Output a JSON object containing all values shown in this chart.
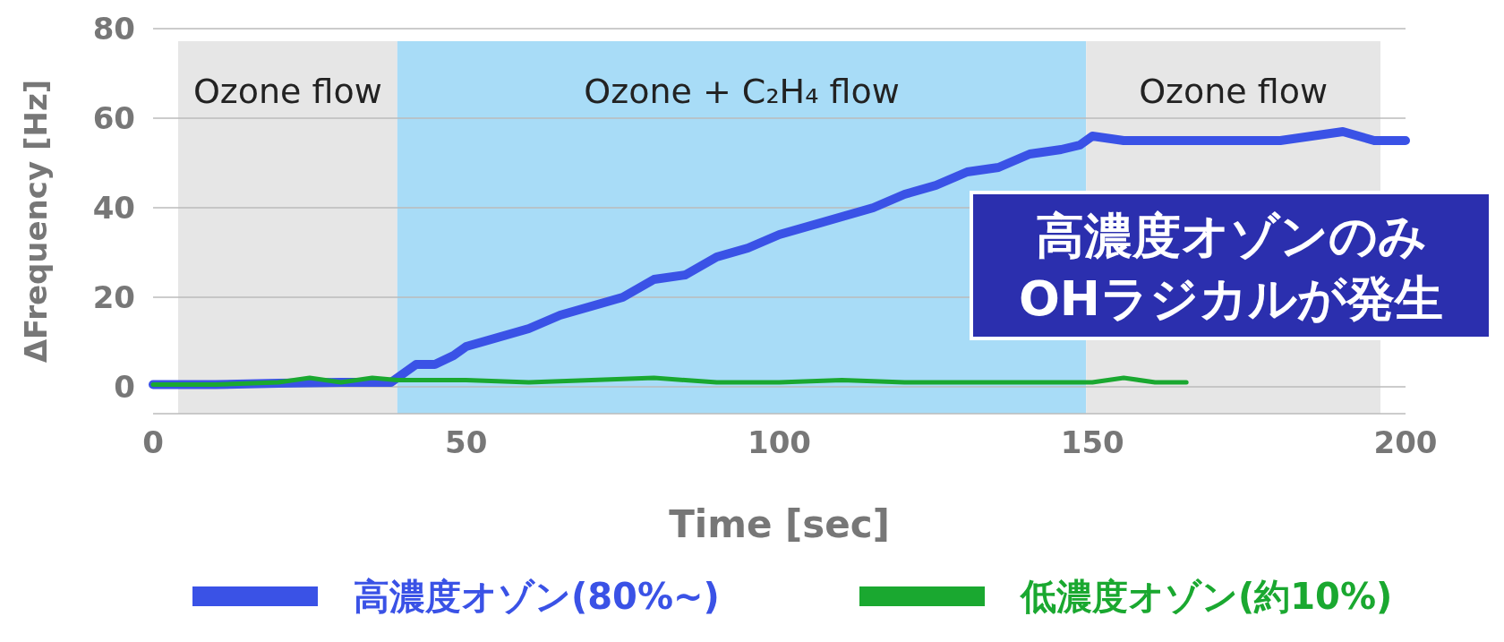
{
  "chart_data": {
    "type": "line",
    "xlabel": "Time [sec]",
    "ylabel": "ΔFrequency [Hz]",
    "xlim": [
      0,
      200
    ],
    "ylim": [
      -6,
      80
    ],
    "xticks": [
      0,
      50,
      100,
      150,
      200
    ],
    "yticks": [
      0,
      20,
      40,
      60,
      80
    ],
    "grid": "y",
    "legend": "bottom",
    "line_style": "solid",
    "bands": [
      {
        "axis": "x",
        "from": 4,
        "to": 39,
        "label": "Ozone flow",
        "color": "#e6e6e6"
      },
      {
        "axis": "x",
        "from": 39,
        "to": 149,
        "label": "Ozone + C₂H₄  flow",
        "color": "#a8dcf7"
      },
      {
        "axis": "x",
        "from": 149,
        "to": 196,
        "label": "Ozone flow",
        "color": "#e6e6e6"
      }
    ],
    "annotations": [
      "高濃度オゾンのみ\nOHラジカルが発生"
    ],
    "series": [
      {
        "name": "高濃度オゾン(80%~)",
        "color": "#3a52e6",
        "x": [
          0,
          10,
          20,
          30,
          38,
          39,
          42,
          45,
          48,
          50,
          55,
          60,
          65,
          70,
          75,
          80,
          85,
          90,
          95,
          100,
          105,
          110,
          115,
          120,
          125,
          130,
          135,
          140,
          145,
          148,
          150,
          155,
          160,
          170,
          180,
          190,
          195,
          200
        ],
        "values": [
          0.5,
          0.5,
          0.8,
          1,
          1,
          2,
          5,
          5,
          7,
          9,
          11,
          13,
          16,
          18,
          20,
          24,
          25,
          29,
          31,
          34,
          36,
          38,
          40,
          43,
          45,
          48,
          49,
          52,
          53,
          54,
          56,
          55,
          55,
          55,
          55,
          57,
          55,
          55
        ]
      },
      {
        "name": "低濃度オゾン(約10%)",
        "color": "#1aa830",
        "x": [
          0,
          10,
          20,
          25,
          30,
          35,
          39,
          50,
          60,
          70,
          80,
          90,
          100,
          110,
          120,
          130,
          140,
          150,
          155,
          160,
          165
        ],
        "values": [
          0.5,
          0.5,
          1,
          2,
          1,
          2,
          1.5,
          1.5,
          1,
          1.5,
          2,
          1,
          1,
          1.5,
          1,
          1,
          1,
          1,
          2,
          1,
          1
        ]
      }
    ]
  }
}
